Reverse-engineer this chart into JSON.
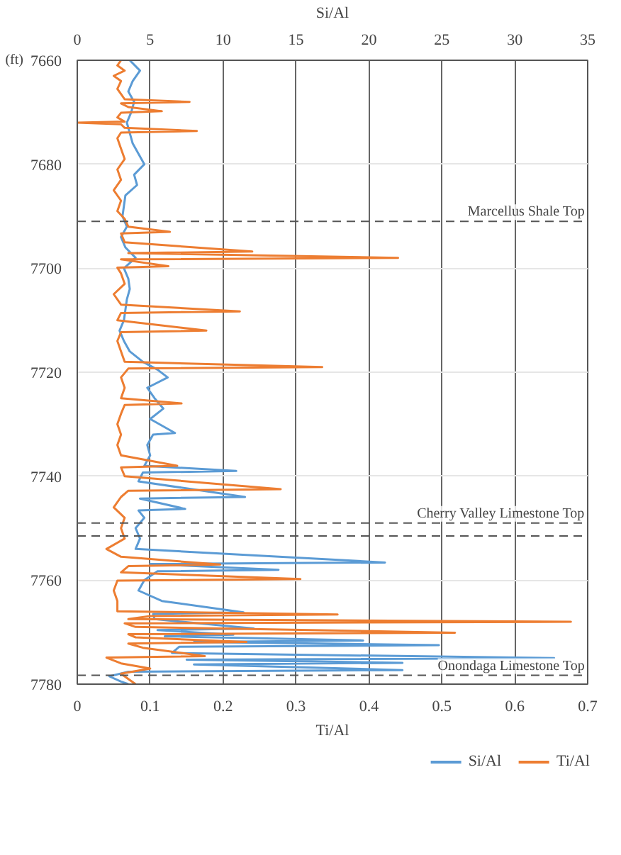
{
  "chart_data": {
    "type": "line",
    "orientation": "horizontal",
    "xlabel": "Ti/Al",
    "x2label": "Si/Al",
    "ylabel": "(ft)",
    "xlim": [
      0,
      0.7
    ],
    "xticks": [
      0,
      0.1,
      0.2,
      0.3,
      0.4,
      0.5,
      0.6,
      0.7
    ],
    "x2lim": [
      0,
      35
    ],
    "x2ticks": [
      0,
      5,
      10,
      15,
      20,
      25,
      30,
      35
    ],
    "ylim": [
      7780,
      7660
    ],
    "yticks": [
      7660,
      7680,
      7700,
      7720,
      7740,
      7760,
      7780
    ],
    "grid": true,
    "legend": "bottom",
    "line_style": "solid",
    "marker": "none",
    "ref_lines": [
      {
        "axis": "y",
        "value": 7691,
        "label": "Marcellus Shale Top",
        "color": "#555555",
        "line_style": "dashed"
      },
      {
        "axis": "y",
        "value": 7749,
        "label": "Cherry Valley Limestone Top",
        "color": "#555555",
        "line_style": "dashed"
      },
      {
        "axis": "y",
        "value": 7751.5,
        "label": null,
        "color": "#555555",
        "line_style": "dashed"
      },
      {
        "axis": "y",
        "value": 7778.3,
        "label": "Onondaga Limestone Top",
        "color": "#555555",
        "line_style": "dashed"
      }
    ],
    "series": [
      {
        "name": "Si/Al",
        "color": "#5b9bd5",
        "axis": "x2",
        "x": [
          7660,
          7662,
          7664,
          7666,
          7668,
          7670,
          7672,
          7674,
          7676,
          7678,
          7680,
          7682,
          7684,
          7686,
          7688,
          7690,
          7692,
          7694,
          7696,
          7698,
          7700,
          7702,
          7704,
          7706,
          7708,
          7710,
          7712,
          7714,
          7716,
          7718,
          7719.5,
          7721,
          7723,
          7725,
          7727,
          7729,
          7731.7,
          7732,
          7734,
          7736,
          7738,
          7739,
          7739.3,
          7741,
          7744,
          7744.3,
          7746.3,
          7746.6,
          7748,
          7750,
          7752,
          7754,
          7756.6,
          7756.9,
          7758,
          7758.3,
          7760,
          7762,
          7764,
          7766.2,
          7766.5,
          7767.5,
          7769.3,
          7769.6,
          7770.5,
          7770.8,
          7771.6,
          7771.9,
          7772.5,
          7772.8,
          7774,
          7775,
          7775.3,
          7775.9,
          7776.2,
          7777.3,
          7777.6,
          7778.5,
          7779.5,
          7780
        ],
        "values": [
          3.6,
          4.3,
          3.8,
          3.5,
          3.9,
          3.7,
          3.4,
          3.6,
          3.8,
          4.2,
          4.6,
          3.9,
          4.1,
          3.3,
          3.2,
          3.1,
          3.4,
          3.0,
          3.3,
          4.0,
          3.2,
          3.5,
          3.6,
          3.4,
          3.3,
          3.2,
          2.9,
          3.2,
          3.6,
          4.5,
          5.5,
          6.2,
          4.8,
          5.3,
          5.9,
          5.0,
          6.7,
          5.2,
          4.8,
          5.0,
          4.6,
          10.9,
          4.5,
          4.2,
          11.5,
          4.3,
          7.4,
          4.2,
          4.6,
          4.0,
          4.3,
          4.0,
          21.1,
          5.0,
          13.8,
          5.5,
          4.6,
          4.2,
          5.8,
          11.4,
          5.2,
          5.3,
          12.1,
          5.5,
          10.7,
          6.0,
          19.6,
          8.0,
          24.8,
          7.0,
          6.5,
          32.7,
          7.5,
          22.3,
          8.0,
          22.3,
          3.5,
          2.2,
          3.0,
          3.5
        ]
      },
      {
        "name": "Ti/Al",
        "color": "#ed7d31",
        "x": [
          7660,
          7661,
          7662,
          7663,
          7664,
          7665.5,
          7666.5,
          7667.5,
          7668,
          7668.3,
          7669,
          7669.8,
          7670.1,
          7671,
          7671.8,
          7672,
          7672.3,
          7673,
          7673.6,
          7673.9,
          7675,
          7677,
          7679,
          7681,
          7683,
          7685,
          7687,
          7689,
          7690.5,
          7692,
          7693,
          7693.3,
          7695,
          7696.8,
          7697.1,
          7698,
          7698.3,
          7699.6,
          7699.9,
          7701,
          7703,
          7705,
          7707,
          7708.3,
          7708.6,
          7710,
          7712,
          7712.3,
          7714,
          7716,
          7718,
          7719,
          7719.3,
          7721,
          7723,
          7725,
          7726,
          7726.3,
          7728,
          7730,
          7732,
          7734,
          7736,
          7738,
          7738.3,
          7740,
          7742.5,
          7742.8,
          7744,
          7746,
          7748,
          7750,
          7752,
          7754,
          7755.5,
          7757,
          7757.3,
          7758.5,
          7759.8,
          7760.1,
          7762,
          7764,
          7766,
          7766.6,
          7766.9,
          7767.5,
          7768,
          7768.3,
          7769,
          7770.1,
          7770.4,
          7771,
          7771.9,
          7772.2,
          7773,
          7774.6,
          7774.9,
          7776,
          7777,
          7778,
          7779,
          7780
        ],
        "values": [
          0.06,
          0.055,
          0.065,
          0.05,
          0.06,
          0.055,
          0.06,
          0.065,
          0.154,
          0.06,
          0.07,
          0.116,
          0.06,
          0.055,
          0.065,
          0.0,
          0.06,
          0.065,
          0.164,
          0.06,
          0.055,
          0.06,
          0.065,
          0.055,
          0.06,
          0.05,
          0.06,
          0.055,
          0.065,
          0.07,
          0.127,
          0.06,
          0.065,
          0.24,
          0.07,
          0.44,
          0.06,
          0.125,
          0.055,
          0.06,
          0.065,
          0.05,
          0.06,
          0.223,
          0.06,
          0.055,
          0.177,
          0.06,
          0.055,
          0.06,
          0.065,
          0.336,
          0.07,
          0.06,
          0.065,
          0.06,
          0.143,
          0.065,
          0.06,
          0.055,
          0.06,
          0.055,
          0.06,
          0.137,
          0.06,
          0.065,
          0.279,
          0.07,
          0.06,
          0.05,
          0.065,
          0.06,
          0.065,
          0.04,
          0.06,
          0.196,
          0.07,
          0.06,
          0.306,
          0.055,
          0.05,
          0.055,
          0.055,
          0.357,
          0.1,
          0.07,
          0.677,
          0.065,
          0.08,
          0.518,
          0.07,
          0.08,
          0.232,
          0.07,
          0.09,
          0.175,
          0.04,
          0.06,
          0.1,
          0.06,
          0.07,
          0.08
        ]
      }
    ]
  }
}
